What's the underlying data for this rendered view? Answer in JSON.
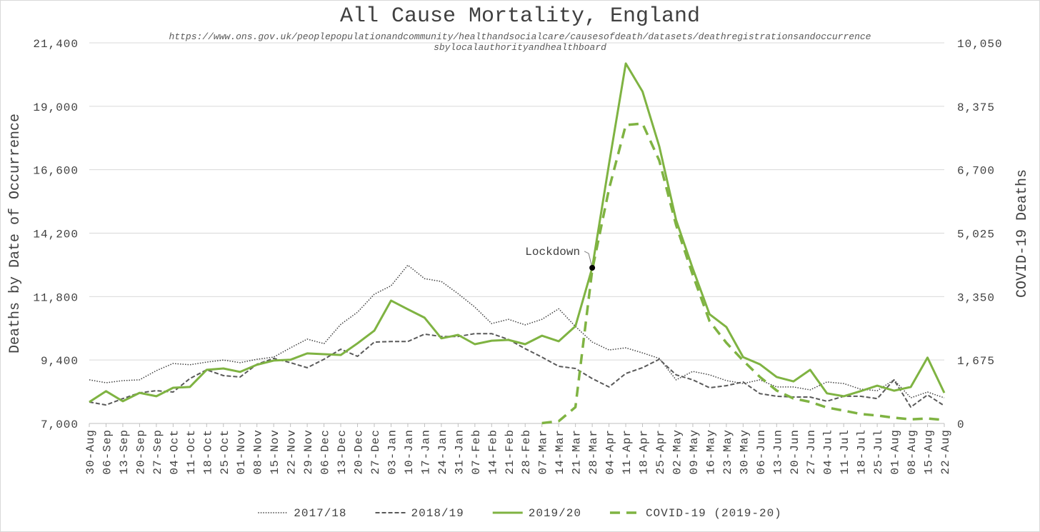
{
  "chart_data": {
    "type": "line",
    "title": "All Cause Mortality, England",
    "subtitle": [
      "https://www.ons.gov.uk/peoplepopulationandcommunity/healthandsocialcare/causesofdeath/datasets/deathregistrationsandoccurrence",
      "sbylocalauthorityandhealthboard"
    ],
    "y_label": "Deaths by Date of Occurrence",
    "y2_label": "COVID-19 Deaths",
    "categories": [
      "30-Aug",
      "06-Sep",
      "13-Sep",
      "20-Sep",
      "27-Sep",
      "04-Oct",
      "11-Oct",
      "18-Oct",
      "25-Oct",
      "01-Nov",
      "08-Nov",
      "15-Nov",
      "22-Nov",
      "29-Nov",
      "06-Dec",
      "13-Dec",
      "20-Dec",
      "27-Dec",
      "03-Jan",
      "10-Jan",
      "17-Jan",
      "24-Jan",
      "31-Jan",
      "07-Feb",
      "14-Feb",
      "21-Feb",
      "28-Feb",
      "07-Mar",
      "14-Mar",
      "21-Mar",
      "28-Mar",
      "04-Apr",
      "11-Apr",
      "18-Apr",
      "25-Apr",
      "02-May",
      "09-May",
      "16-May",
      "23-May",
      "30-May",
      "06-Jun",
      "13-Jun",
      "20-Jun",
      "27-Jun",
      "04-Jul",
      "11-Jul",
      "18-Jul",
      "25-Jul",
      "01-Aug",
      "08-Aug",
      "15-Aug",
      "22-Aug"
    ],
    "series": [
      {
        "name": "2017/18",
        "color": "#404040",
        "style": "dotted",
        "values": [
          8650,
          8540,
          8620,
          8650,
          9000,
          9270,
          9220,
          9320,
          9400,
          9300,
          9430,
          9510,
          9860,
          10190,
          10020,
          10750,
          11210,
          11890,
          12210,
          12990,
          12480,
          12370,
          11910,
          11400,
          10780,
          10940,
          10730,
          10940,
          11340,
          10670,
          10080,
          9780,
          9860,
          9670,
          9460,
          8650,
          8970,
          8840,
          8620,
          8510,
          8650,
          8380,
          8380,
          8270,
          8570,
          8510,
          8300,
          8240,
          8650,
          7970,
          8190,
          7970
        ]
      },
      {
        "name": "2018/19",
        "color": "#595959",
        "style": "dashed",
        "values": [
          7810,
          7700,
          7940,
          8160,
          8240,
          8190,
          8700,
          9030,
          8810,
          8760,
          9240,
          9460,
          9300,
          9110,
          9430,
          9810,
          9540,
          10080,
          10100,
          10100,
          10380,
          10290,
          10290,
          10400,
          10400,
          10180,
          9830,
          9510,
          9160,
          9080,
          8700,
          8380,
          8890,
          9110,
          9430,
          8840,
          8650,
          8350,
          8430,
          8570,
          8130,
          8030,
          8000,
          8000,
          7840,
          8030,
          8030,
          7940,
          8650,
          7620,
          8080,
          7670
        ]
      },
      {
        "name": "2019/20",
        "color": "#7fb342",
        "style": "solid",
        "values": [
          7810,
          8220,
          7840,
          8160,
          8030,
          8350,
          8380,
          9030,
          9080,
          8950,
          9220,
          9380,
          9410,
          9650,
          9620,
          9590,
          10030,
          10510,
          11650,
          11320,
          11000,
          10220,
          10350,
          10000,
          10130,
          10160,
          10000,
          10320,
          10110,
          10680,
          12890,
          16810,
          20620,
          19560,
          17480,
          14700,
          12860,
          11130,
          10650,
          9510,
          9240,
          8760,
          8590,
          9030,
          8140,
          8030,
          8220,
          8430,
          8240,
          8380,
          9490,
          8160
        ]
      },
      {
        "name": "COVID-19 (2019-20)",
        "color": "#7fb342",
        "style": "long-dashed",
        "axis": "y2",
        "values": [
          null,
          null,
          null,
          null,
          null,
          null,
          null,
          null,
          null,
          null,
          null,
          null,
          null,
          null,
          null,
          null,
          null,
          null,
          null,
          null,
          null,
          null,
          null,
          null,
          null,
          null,
          null,
          10,
          60,
          430,
          4050,
          6190,
          7880,
          7920,
          6940,
          5240,
          3920,
          2700,
          2130,
          1660,
          1230,
          870,
          660,
          570,
          420,
          340,
          250,
          210,
          150,
          110,
          130,
          90
        ]
      }
    ],
    "annotations": [
      {
        "text": "Lockdown",
        "x": "28-Mar",
        "series": "2019/20"
      }
    ],
    "ylim": [
      7000,
      21400
    ],
    "yticks": [
      {
        "value": 7000,
        "label": "7,000"
      },
      {
        "value": 9400,
        "label": "9,400"
      },
      {
        "value": 11800,
        "label": "11,800"
      },
      {
        "value": 14200,
        "label": "14,200"
      },
      {
        "value": 16600,
        "label": "16,600"
      },
      {
        "value": 19000,
        "label": "19,000"
      },
      {
        "value": 21400,
        "label": "21,400"
      }
    ],
    "y2lim": [
      0,
      10050
    ],
    "y2ticks": [
      0,
      {
        "value": 1675,
        "label": "1,675"
      },
      {
        "value": 3350,
        "label": "3,350"
      },
      {
        "value": 5025,
        "label": "5,025"
      },
      {
        "value": 6700,
        "label": "6,700"
      },
      {
        "value": 8375,
        "label": "8,375"
      },
      {
        "value": 10050,
        "label": "10,050"
      }
    ],
    "grid": true,
    "legend": "bottom"
  }
}
